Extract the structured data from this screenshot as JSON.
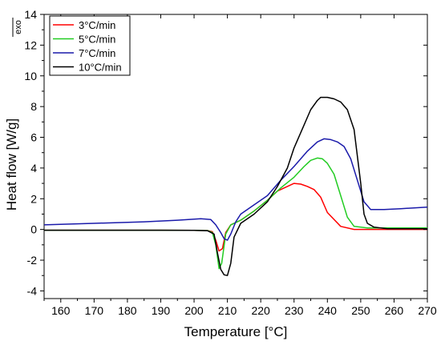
{
  "chart_data": {
    "type": "line",
    "xlabel": "Temperature [°C]",
    "ylabel": "Heat flow [W/g]",
    "annotation": "exo",
    "xlim": [
      155,
      270
    ],
    "ylim": [
      -4.5,
      14
    ],
    "xticks": [
      160,
      170,
      180,
      190,
      200,
      210,
      220,
      230,
      240,
      250,
      260,
      270
    ],
    "yticks": [
      -4,
      -2,
      0,
      2,
      4,
      6,
      8,
      10,
      12,
      14
    ],
    "legend_position": "top-left",
    "series": [
      {
        "name": "3°C/min",
        "color": "#ff0000",
        "x": [
          155,
          170,
          190,
          200,
          204,
          205.5,
          206.5,
          207.5,
          208.5,
          209.5,
          211,
          214,
          218,
          222,
          225,
          228,
          230,
          232,
          234,
          236,
          238,
          240,
          244,
          248,
          255,
          262,
          270
        ],
        "y": [
          -0.05,
          -0.05,
          -0.05,
          -0.06,
          -0.07,
          -0.15,
          -0.7,
          -1.4,
          -1.25,
          -0.2,
          0.3,
          0.6,
          1.2,
          1.9,
          2.5,
          2.8,
          3.0,
          2.95,
          2.8,
          2.6,
          2.1,
          1.1,
          0.2,
          0.0,
          0.0,
          0.0,
          0.0
        ]
      },
      {
        "name": "5°C/min",
        "color": "#22cc22",
        "x": [
          155,
          170,
          190,
          200,
          204,
          205.5,
          206.5,
          207.5,
          208.3,
          209.5,
          211,
          214,
          218,
          222,
          226,
          230,
          233,
          235,
          237,
          238.5,
          240,
          242,
          244,
          246,
          248,
          252,
          260,
          270
        ],
        "y": [
          -0.05,
          -0.05,
          -0.05,
          -0.06,
          -0.07,
          -0.2,
          -1.0,
          -2.55,
          -2.2,
          -0.3,
          0.3,
          0.6,
          1.2,
          1.9,
          2.7,
          3.4,
          4.1,
          4.5,
          4.65,
          4.6,
          4.3,
          3.6,
          2.2,
          0.8,
          0.2,
          0.1,
          0.1,
          0.1
        ]
      },
      {
        "name": "7°C/min",
        "color": "#1a1aaa",
        "x": [
          155,
          170,
          185,
          195,
          202,
          205,
          206.5,
          208,
          209,
          210,
          211,
          212.5,
          214,
          218,
          222,
          226,
          230,
          234,
          237,
          239,
          241,
          243,
          245,
          247,
          249,
          251,
          253,
          257,
          262,
          270
        ],
        "y": [
          0.3,
          0.4,
          0.5,
          0.6,
          0.7,
          0.65,
          0.3,
          -0.2,
          -0.6,
          -0.7,
          -0.3,
          0.5,
          1.0,
          1.6,
          2.2,
          3.2,
          4.1,
          5.1,
          5.7,
          5.9,
          5.85,
          5.7,
          5.4,
          4.6,
          3.2,
          1.8,
          1.3,
          1.3,
          1.35,
          1.45
        ]
      },
      {
        "name": "10°C/min",
        "color": "#000000",
        "x": [
          155,
          170,
          190,
          200,
          204,
          206,
          207,
          208,
          209,
          210,
          211,
          212,
          214,
          218,
          222,
          225,
          228,
          230,
          233,
          235,
          237,
          238,
          240,
          242,
          244,
          246,
          248,
          250,
          251,
          252,
          254,
          258,
          264,
          270
        ],
        "y": [
          -0.05,
          -0.05,
          -0.05,
          -0.06,
          -0.08,
          -0.3,
          -1.5,
          -2.6,
          -2.95,
          -3.0,
          -2.2,
          -0.5,
          0.4,
          1.0,
          1.8,
          2.8,
          4.0,
          5.3,
          6.8,
          7.8,
          8.4,
          8.6,
          8.6,
          8.5,
          8.3,
          7.8,
          6.5,
          3.0,
          1.0,
          0.4,
          0.15,
          0.05,
          0.05,
          0.05
        ]
      }
    ]
  }
}
